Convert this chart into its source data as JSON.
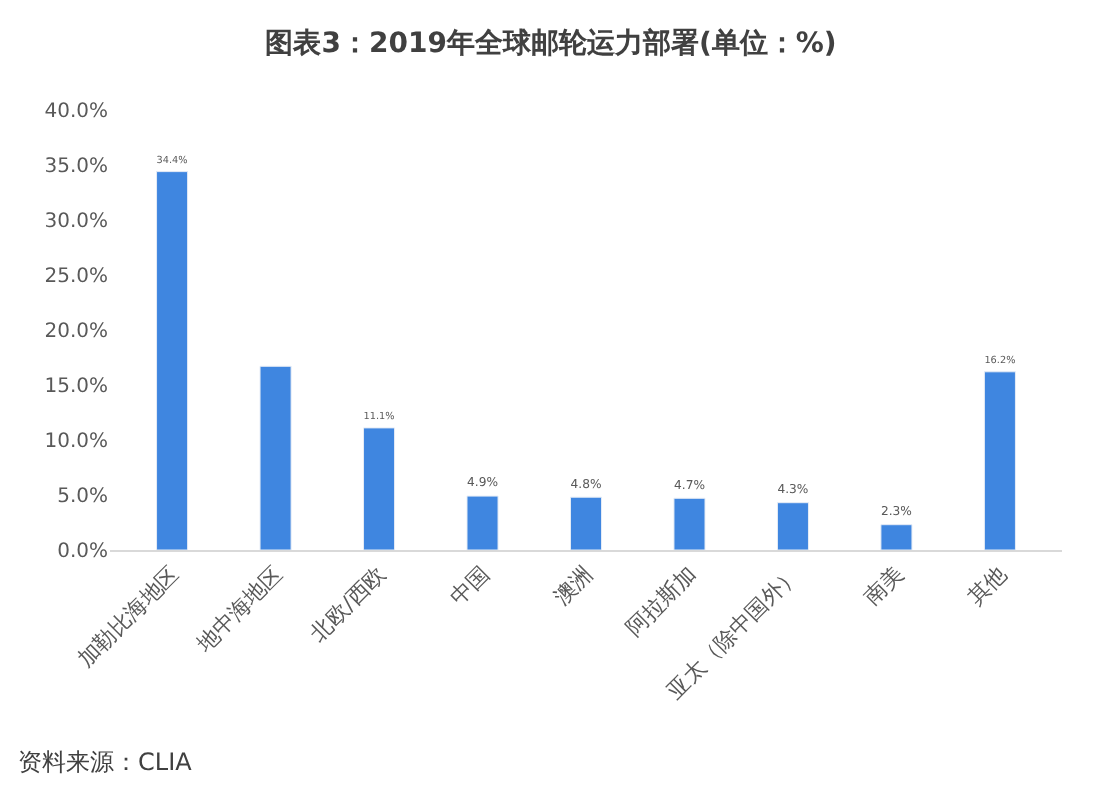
{
  "chart_data": {
    "type": "bar",
    "title": "图表3：2019年全球邮轮运力部署(单位：%)",
    "categories": [
      "加勒比海地区",
      "地中海地区",
      "北欧/西欧",
      "中国",
      "澳洲",
      "阿拉斯加",
      "亚太（除中国外）",
      "南美",
      "其他"
    ],
    "values": [
      34.4,
      16.7,
      11.1,
      4.9,
      4.8,
      4.7,
      4.3,
      2.3,
      16.2
    ],
    "value_labels": [
      "34.4%",
      null,
      "11.1%",
      "4.9%",
      "4.8%",
      "4.7%",
      "4.3%",
      "2.3%",
      "16.2%"
    ],
    "color": "#3f86e0",
    "ylim": [
      0,
      40
    ],
    "yticks": [
      {
        "value": 0,
        "label": "0.0%"
      },
      {
        "value": 5,
        "label": "5.0%"
      },
      {
        "value": 10,
        "label": "10.0%"
      },
      {
        "value": 15,
        "label": "15.0%"
      },
      {
        "value": 20,
        "label": "20.0%"
      },
      {
        "value": 25,
        "label": "25.0%"
      },
      {
        "value": 30,
        "label": "30.0%"
      },
      {
        "value": 35,
        "label": "35.0%"
      },
      {
        "value": 40,
        "label": "40.0%"
      }
    ],
    "grid": false,
    "annotations": [
      "资料来源：CLIA"
    ]
  }
}
